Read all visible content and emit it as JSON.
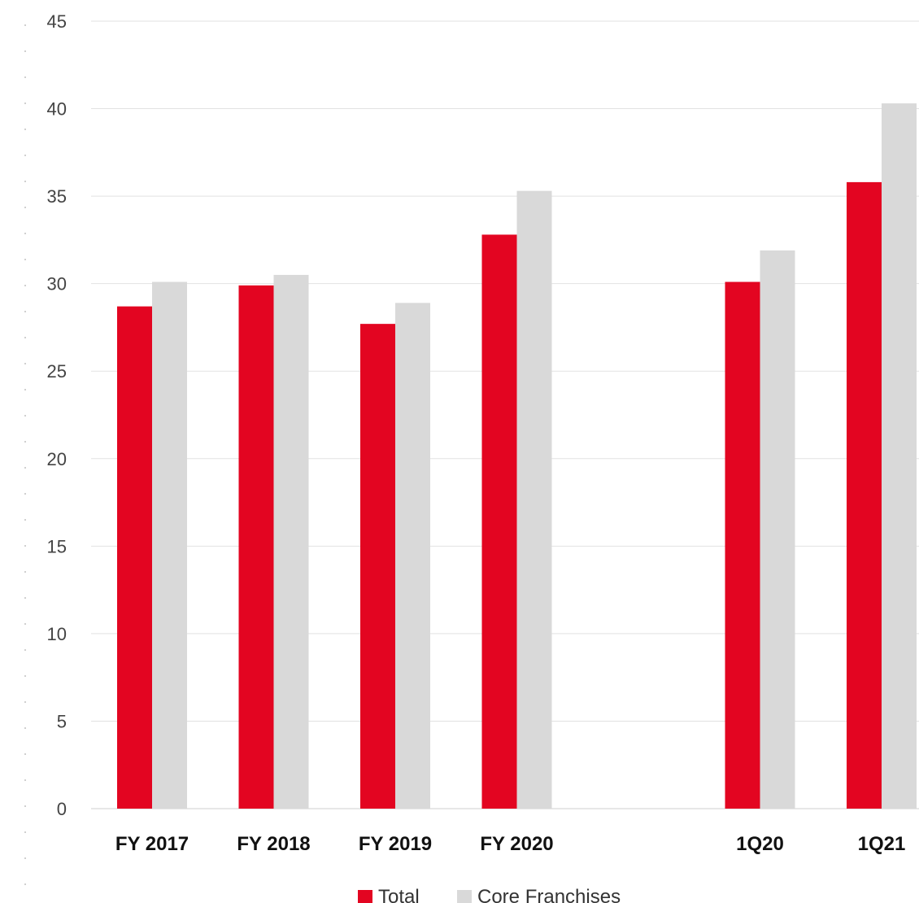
{
  "chart_data": {
    "type": "bar",
    "title": "",
    "xlabel": "",
    "ylabel": "",
    "ylim": [
      0,
      45
    ],
    "yticks": [
      0,
      5,
      10,
      15,
      20,
      25,
      30,
      35,
      40,
      45
    ],
    "categories": [
      "FY 2017",
      "FY 2018",
      "FY 2019",
      "FY 2020",
      "",
      "1Q20",
      "1Q21"
    ],
    "series": [
      {
        "name": "Total",
        "color": "#e30521",
        "values": [
          28.7,
          29.9,
          27.7,
          32.8,
          null,
          30.1,
          35.8
        ]
      },
      {
        "name": "Core Franchises",
        "color": "#d9d9d9",
        "values": [
          30.1,
          30.5,
          28.9,
          35.3,
          null,
          31.9,
          40.3
        ]
      }
    ],
    "grid": true,
    "legend_position": "bottom-center"
  }
}
